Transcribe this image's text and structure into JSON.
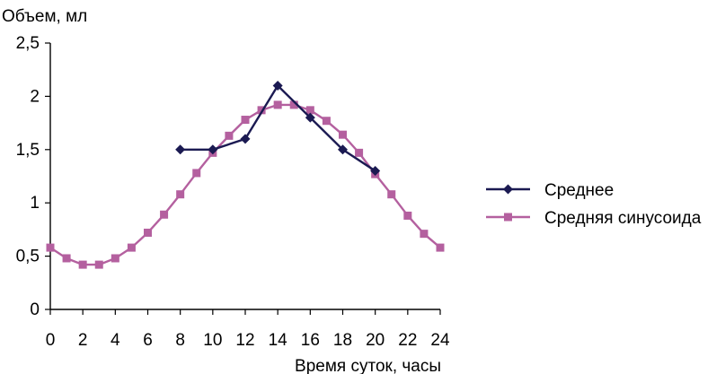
{
  "chart_data": {
    "type": "line",
    "ylabel": "Объем, мл",
    "xlabel": "Время суток, часы",
    "xlim": [
      0,
      24
    ],
    "ylim": [
      0,
      2.5
    ],
    "x_ticks": [
      "0",
      "2",
      "4",
      "6",
      "8",
      "10",
      "12",
      "14",
      "16",
      "18",
      "20",
      "22",
      "24"
    ],
    "y_ticks": [
      "0",
      "0,5",
      "1",
      "1,5",
      "2",
      "2,5"
    ],
    "grid": false,
    "legend_position": "right",
    "series": [
      {
        "name": "Среднее",
        "color": "#1b1a52",
        "marker": "diamond",
        "x": [
          8,
          10,
          12,
          14,
          16,
          18,
          20
        ],
        "y": [
          1.5,
          1.5,
          1.6,
          2.1,
          1.8,
          1.5,
          1.3
        ]
      },
      {
        "name": "Средняя синусоида",
        "color": "#b4609f",
        "marker": "square",
        "x": [
          0,
          1,
          2,
          3,
          4,
          5,
          6,
          7,
          8,
          9,
          10,
          11,
          12,
          13,
          14,
          15,
          16,
          17,
          18,
          19,
          20,
          21,
          22,
          23,
          24
        ],
        "y": [
          0.58,
          0.48,
          0.42,
          0.42,
          0.48,
          0.58,
          0.72,
          0.89,
          1.08,
          1.28,
          1.47,
          1.63,
          1.78,
          1.87,
          1.92,
          1.92,
          1.87,
          1.77,
          1.64,
          1.47,
          1.27,
          1.08,
          0.88,
          0.71,
          0.58
        ]
      }
    ]
  }
}
